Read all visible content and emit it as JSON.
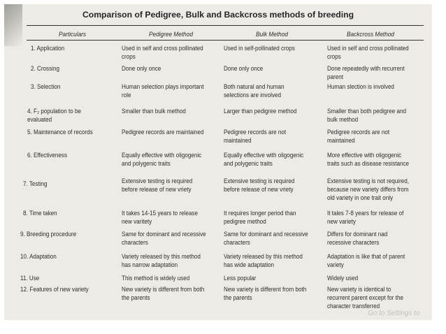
{
  "title": "Comparison of Pedigree, Bulk and Backcross methods of breeding",
  "headers": [
    "Particulars",
    "Pedigree Method",
    "Bulk Method",
    "Backcross Method"
  ],
  "rows": [
    {
      "particular": [
        "1.  Application"
      ],
      "pedigree": [
        "Used in self and cross pollinated",
        "crops"
      ],
      "bulk": [
        "Used in self-pollinated crops"
      ],
      "backcross": [
        "Used in self and cross pollinated",
        "crops"
      ]
    },
    {
      "particular": [
        "2.  Crossing"
      ],
      "pedigree": [
        "Done only once"
      ],
      "bulk": [
        "Done only once"
      ],
      "backcross": [
        "Done repeatedly with recurrent",
        "parent"
      ]
    },
    {
      "particular": [
        "3.  Selection"
      ],
      "pedigree": [
        "Human selection plays important",
        "role"
      ],
      "bulk": [
        "Both  natural  and  human",
        "selections are involved"
      ],
      "backcross": [
        "Human slection is involved"
      ]
    },
    {
      "particular": [
        "4.  F₂ population to be",
        "evaluated"
      ],
      "pedigree": [
        "Smaller than bulk method"
      ],
      "bulk": [
        "Larger than pedigree method"
      ],
      "backcross": [
        "Smaller than both pedigree and",
        "bulk method"
      ]
    },
    {
      "particular": [
        "5.  Maintenance of records"
      ],
      "pedigree": [
        "Pedigree records are maintained"
      ],
      "bulk": [
        "Pedigree  records  are  not",
        "maintained"
      ],
      "backcross": [
        "Pedigree  records  are  not",
        "maintained"
      ]
    },
    {
      "particular": [
        "6.  Effectiveness"
      ],
      "pedigree": [
        "Equally effective with oligogenic",
        "and polygenic traits"
      ],
      "bulk": [
        "Equally effective with oligogenic",
        "and polygenic traits"
      ],
      "backcross": [
        "More effective with oligogenic",
        "traits such as disease resistance"
      ]
    },
    {
      "particular": [
        "7.  Testing"
      ],
      "pedigree": [
        "Extensive testing is required",
        "before release of new vriety"
      ],
      "bulk": [
        "Extensive testing is required",
        "before release of new vriety"
      ],
      "backcross": [
        "Extensive testing is not required,",
        "because new variety differs from",
        "old variety in one trait  only"
      ]
    },
    {
      "particular": [
        "8.  Time taken"
      ],
      "pedigree": [
        "It takes 14-15 years to release",
        "new varitety"
      ],
      "bulk": [
        "It requires longer period than",
        "pedigree method"
      ],
      "backcross": [
        "It tales 7-8 years for release of",
        "new variety"
      ]
    },
    {
      "particular": [
        "9.  Breeding procedure"
      ],
      "pedigree": [
        "Same for dominant and recessive",
        "characters"
      ],
      "bulk": [
        "Same for dominant and recessive",
        "characters"
      ],
      "backcross": [
        "Differs  for  dominant  nad",
        "recessive characters"
      ]
    },
    {
      "particular": [
        "10. Adaptation"
      ],
      "pedigree": [
        "Variety released by this method",
        "has narrow adaptation"
      ],
      "bulk": [
        "Variety released by this method",
        "has wide adaptation"
      ],
      "backcross": [
        "Adaptation is like that of parent",
        "variety"
      ]
    },
    {
      "particular": [
        "11. Use"
      ],
      "pedigree": [
        "This method is widely used"
      ],
      "bulk": [
        "Less popular"
      ],
      "backcross": [
        "Widely used"
      ]
    },
    {
      "particular": [
        "12. Features of new variety"
      ],
      "pedigree": [
        "New variety is different from both",
        "the parents"
      ],
      "bulk": [
        "New variety is different from both",
        "the parents"
      ],
      "backcross": [
        "New  variety  is  identical  to",
        "recurrent parent except for the",
        "character transferred"
      ]
    }
  ],
  "watermark": "Go to Settings to"
}
